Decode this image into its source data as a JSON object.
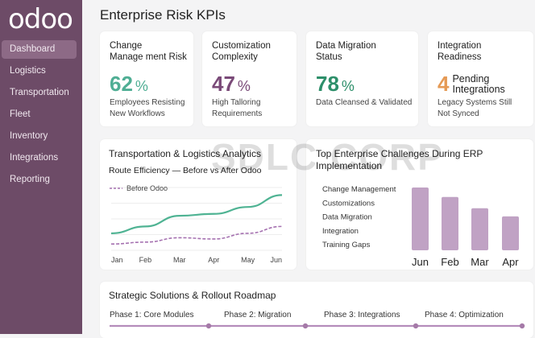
{
  "app": {
    "logo": "odoo"
  },
  "sidebar": {
    "items": [
      {
        "label": "Dashboard",
        "active": true
      },
      {
        "label": "Logistics"
      },
      {
        "label": "Transportation"
      },
      {
        "label": "Fleet"
      },
      {
        "label": "Inventory"
      },
      {
        "label": "Integrations"
      },
      {
        "label": "Reporting"
      }
    ]
  },
  "page": {
    "title": "Enterprise Risk KPIs",
    "watermark": "SDLC CORP"
  },
  "kpis": [
    {
      "title1": "Change",
      "title2": "Manage ment Risk",
      "value": "62",
      "unit": "%",
      "desc1": "Employees Resisting",
      "desc2": "New Workflows",
      "color": "#4fae94"
    },
    {
      "title1": "Customization",
      "title2": "Complexity",
      "value": "47",
      "unit": "%",
      "desc1": "High Talloring",
      "desc2": "Requirements",
      "color": "#7a4a78"
    },
    {
      "title1": "Data Migration",
      "title2": "Status",
      "value": "78",
      "unit": "%",
      "desc1": "Data Cleansed & Validated",
      "desc2": "",
      "color": "#2d8f6a"
    },
    {
      "title1": "Integration",
      "title2": "Readiness",
      "value": "4",
      "unit1": "Pending",
      "unit2": "Integrations",
      "desc1": "Legacy Systems Still",
      "desc2": "Not Synced",
      "color": "#e59a55"
    }
  ],
  "chart_data": [
    {
      "type": "line",
      "title": "Transportation & Logistics Analytics",
      "subtitle": "Route Efficiency — Before vs After Odoo",
      "categories": [
        "Jan",
        "Feb",
        "Mar",
        "Apr",
        "May",
        "Jun"
      ],
      "ylim": [
        0,
        100
      ],
      "grid": true,
      "legend": "top-left",
      "series": [
        {
          "values": [
            27,
            38,
            55,
            58,
            69,
            88
          ],
          "color": "#4fb393",
          "style": "solid"
        },
        {
          "name": "Before Odoo",
          "values": [
            10,
            13,
            20,
            18,
            27,
            38
          ],
          "color": "#a571b0",
          "style": "dashed"
        }
      ]
    },
    {
      "type": "bar",
      "title": "Top Enterprise Challenges During ERP Implementation",
      "labels": [
        "Change Management",
        "Customizations",
        "Data Migration",
        "Integration",
        "Training Gaps"
      ],
      "categories": [
        "Jun",
        "Feb",
        "Mar",
        "Apr"
      ],
      "values": [
        100,
        85,
        67,
        54
      ],
      "ylim": [
        0,
        100
      ],
      "color": "#c0a2c4"
    }
  ],
  "roadmap": {
    "title": "Strategic Solutions & Rollout Roadmap",
    "phases": [
      "Phase 1: Core Modules",
      "Phase 2: Migration",
      "Phase 3: Integrations",
      "Phase 4: Optimization"
    ],
    "color": "#b58cbb"
  }
}
